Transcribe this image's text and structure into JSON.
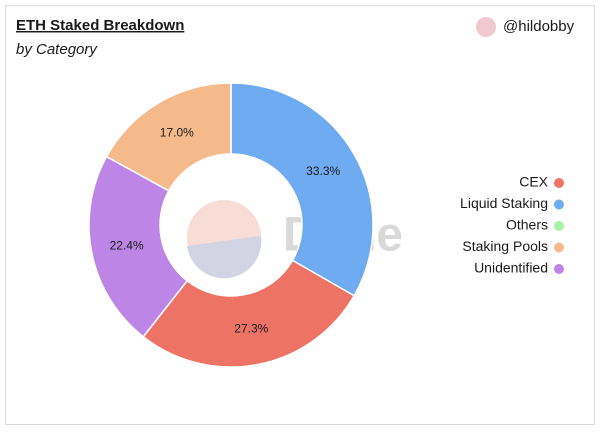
{
  "chart_data": {
    "type": "pie",
    "title": "ETH Staked Breakdown",
    "subtitle": "by Category",
    "author": "@hildobby",
    "watermark": "Dune",
    "categories": [
      "CEX",
      "Liquid Staking",
      "Others",
      "Staking Pools",
      "Unidentified"
    ],
    "values": [
      27.3,
      33.3,
      0,
      17.0,
      22.4
    ],
    "value_labels": [
      "27.3%",
      "33.3%",
      null,
      "17.0%",
      "22.4%"
    ],
    "colors": [
      "#ec7366",
      "#6eabf0",
      "#a8f0a8",
      "#f5ba8b",
      "#bd86e6"
    ],
    "donut": true,
    "legend": "right"
  }
}
